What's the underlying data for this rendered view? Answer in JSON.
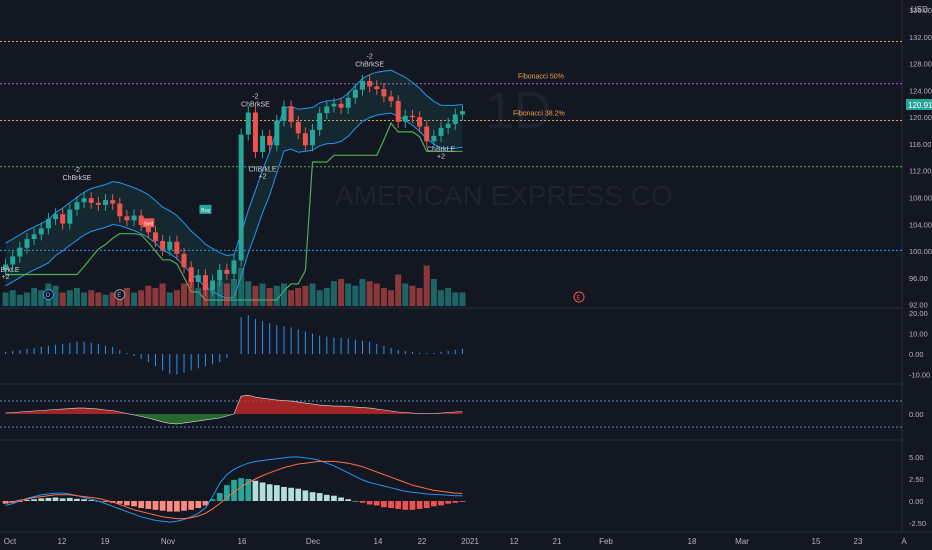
{
  "currency": "USD",
  "watermark": "1D",
  "watermark_name": "AMERICAN EXPRESS CO",
  "last_price_label": "120.91",
  "colors": {
    "background": "#131722",
    "up": "#26a69a",
    "down": "#ef5350",
    "grid": "#1e222d",
    "axis_text": "#b2b5be",
    "fib_orange": "#f0a04b",
    "fib_purple": "#b35bc9",
    "blue_line": "#2196f3",
    "green_line": "#4caf50",
    "price_tag": "#26a69a"
  },
  "chart_data": [
    {
      "type": "line",
      "name": "price",
      "y_ticks": [
        136.0,
        132.0,
        128.0,
        124.0,
        120.0,
        116.0,
        112.0,
        108.0,
        104.0,
        100.0,
        96.0,
        92.0
      ],
      "y_tick_labels": [
        "136.00",
        "132.00",
        "128.00",
        "124.00",
        "120.00",
        "116.00",
        "112.00",
        "108.00",
        "104.00",
        "100.00",
        "96.00",
        "92.00"
      ],
      "ylim": [
        91.5,
        137.5
      ],
      "x_tick_labels": [
        "Oct",
        "12",
        "19",
        "Nov",
        "16",
        "Dec",
        "14",
        "22",
        "2021",
        "12",
        "21",
        "Feb",
        "18",
        "Mar",
        "15",
        "23",
        "A"
      ],
      "close": [
        98,
        99.2,
        100.5,
        101.8,
        102.5,
        103.4,
        104.8,
        105.5,
        104.1,
        106.2,
        107.3,
        107.9,
        107.2,
        106.9,
        107.6,
        107.1,
        105.2,
        104.6,
        105.3,
        103.9,
        102.8,
        101.5,
        100.2,
        101.4,
        99.6,
        97.6,
        95.4,
        96.4,
        94.2,
        95.6,
        97.2,
        96.6,
        98.6,
        117.4,
        120.7,
        114.8,
        117.2,
        115.8,
        119.5,
        121.6,
        119.3,
        117.6,
        115.8,
        118.1,
        120.6,
        121.6,
        122.0,
        121.4,
        122.9,
        124.1,
        125.4,
        124.6,
        124.2,
        123.1,
        122.4,
        119.3,
        120.2,
        120.0,
        118.6,
        116.4,
        117.2,
        118.4,
        119.0,
        120.4,
        120.9
      ],
      "fibonacci_levels": [
        {
          "label": "Fibonacci 50%",
          "value": 125.0,
          "color": "fib_purple"
        },
        {
          "label": "Fibonacci 38.2%",
          "value": 119.5,
          "color": "fib_orange"
        }
      ],
      "horizontal_levels": [
        131.3,
        112.6,
        100.1
      ],
      "annotations": [
        {
          "text": "ChBrkSE",
          "value": "-2"
        },
        {
          "text": "ChBrkLE",
          "value": "+2"
        },
        {
          "text": "Buy"
        },
        {
          "text": "Sell"
        },
        {
          "text": "D"
        },
        {
          "text": "E"
        }
      ],
      "volume": [
        0.3,
        0.35,
        0.25,
        0.3,
        0.4,
        0.35,
        0.5,
        0.45,
        0.3,
        0.35,
        0.4,
        0.3,
        0.35,
        0.3,
        0.25,
        0.3,
        0.35,
        0.4,
        0.3,
        0.35,
        0.45,
        0.4,
        0.5,
        0.3,
        0.35,
        0.5,
        0.6,
        0.4,
        0.45,
        0.35,
        0.55,
        0.5,
        0.6,
        0.85,
        0.55,
        0.45,
        0.5,
        0.4,
        0.45,
        0.5,
        0.35,
        0.4,
        0.45,
        0.5,
        0.35,
        0.4,
        0.55,
        0.6,
        0.5,
        0.45,
        0.6,
        0.55,
        0.5,
        0.4,
        0.35,
        0.7,
        0.5,
        0.45,
        0.4,
        0.9,
        0.6,
        0.35,
        0.4,
        0.3,
        0.3
      ]
    },
    {
      "type": "bar",
      "name": "momentum",
      "y_ticks": [
        20.0,
        10.0,
        0.0,
        -10.0
      ],
      "y_tick_labels": [
        "20.00",
        "10.00",
        "0.00",
        "-10.00"
      ],
      "values": [
        1,
        1.5,
        2,
        2.5,
        3,
        3.5,
        4,
        4.5,
        5,
        5.5,
        6,
        6,
        5.5,
        5,
        4,
        3.5,
        2,
        0.5,
        -1,
        -2.5,
        -4,
        -6,
        -8,
        -9.5,
        -10,
        -9,
        -8,
        -7,
        -6,
        -5,
        -4,
        -2,
        0,
        18,
        19,
        17,
        16,
        15,
        14,
        13.5,
        13,
        12,
        11,
        10,
        9,
        8.5,
        8,
        8,
        7.5,
        7,
        6.5,
        6,
        5,
        4,
        3,
        2,
        1.5,
        1,
        0.5,
        0.5,
        0.5,
        1,
        1.5,
        2,
        2.5
      ]
    },
    {
      "type": "area",
      "name": "oscillator",
      "y_ticks": [
        0.0
      ],
      "y_tick_labels": [
        "0.00"
      ]
    },
    {
      "type": "bar",
      "name": "macd",
      "y_ticks": [
        5.0,
        2.5,
        0.0,
        -2.5
      ],
      "y_tick_labels": [
        "5.00",
        "2.50",
        "0.00",
        "-2.50"
      ],
      "histogram": [
        -0.3,
        -0.2,
        -0.1,
        0.1,
        0.2,
        0.3,
        0.35,
        0.4,
        0.3,
        0.35,
        0.25,
        0.2,
        0.1,
        0.0,
        -0.1,
        -0.2,
        -0.3,
        -0.5,
        -0.6,
        -0.8,
        -0.9,
        -1.0,
        -1.1,
        -1.2,
        -1.2,
        -1.1,
        -1.0,
        -0.8,
        -0.5,
        0.2,
        0.9,
        1.8,
        2.4,
        2.6,
        2.5,
        2.3,
        2.1,
        1.9,
        1.8,
        1.6,
        1.5,
        1.4,
        1.2,
        1.0,
        0.9,
        0.7,
        0.6,
        0.4,
        0.2,
        0.0,
        -0.2,
        -0.4,
        -0.5,
        -0.7,
        -0.8,
        -0.9,
        -1.0,
        -1.0,
        -0.9,
        -0.8,
        -0.6,
        -0.5,
        -0.3,
        -0.2,
        -0.1
      ],
      "macd_line": [
        -0.5,
        -0.3,
        0.0,
        0.3,
        0.5,
        0.7,
        0.8,
        0.9,
        0.9,
        0.8,
        0.6,
        0.4,
        0.2,
        0.0,
        -0.3,
        -0.6,
        -0.9,
        -1.2,
        -1.5,
        -1.8,
        -2.0,
        -2.2,
        -2.3,
        -2.4,
        -2.3,
        -2.1,
        -1.8,
        -1.4,
        -0.8,
        0.5,
        2.0,
        3.0,
        3.6,
        4.0,
        4.3,
        4.5,
        4.6,
        4.7,
        4.8,
        4.9,
        5.0,
        5.0,
        4.9,
        4.8,
        4.6,
        4.3,
        4.0,
        3.6,
        3.2,
        2.8,
        2.4,
        2.1,
        1.9,
        1.7,
        1.5,
        1.3,
        1.1,
        1.0,
        0.9,
        0.8,
        0.75,
        0.7,
        0.65,
        0.6,
        0.6
      ],
      "signal_line": [
        -0.2,
        -0.1,
        0.1,
        0.2,
        0.4,
        0.5,
        0.6,
        0.7,
        0.7,
        0.7,
        0.6,
        0.5,
        0.4,
        0.3,
        0.1,
        -0.1,
        -0.4,
        -0.7,
        -1.0,
        -1.2,
        -1.4,
        -1.6,
        -1.8,
        -1.9,
        -2.0,
        -2.0,
        -1.9,
        -1.7,
        -1.4,
        -0.9,
        -0.3,
        0.4,
        1.0,
        1.6,
        2.1,
        2.5,
        2.9,
        3.2,
        3.5,
        3.8,
        4.0,
        4.2,
        4.3,
        4.4,
        4.5,
        4.5,
        4.5,
        4.4,
        4.3,
        4.1,
        3.9,
        3.6,
        3.3,
        3.0,
        2.7,
        2.4,
        2.1,
        1.8,
        1.6,
        1.4,
        1.2,
        1.1,
        1.0,
        0.9,
        0.85
      ]
    }
  ]
}
